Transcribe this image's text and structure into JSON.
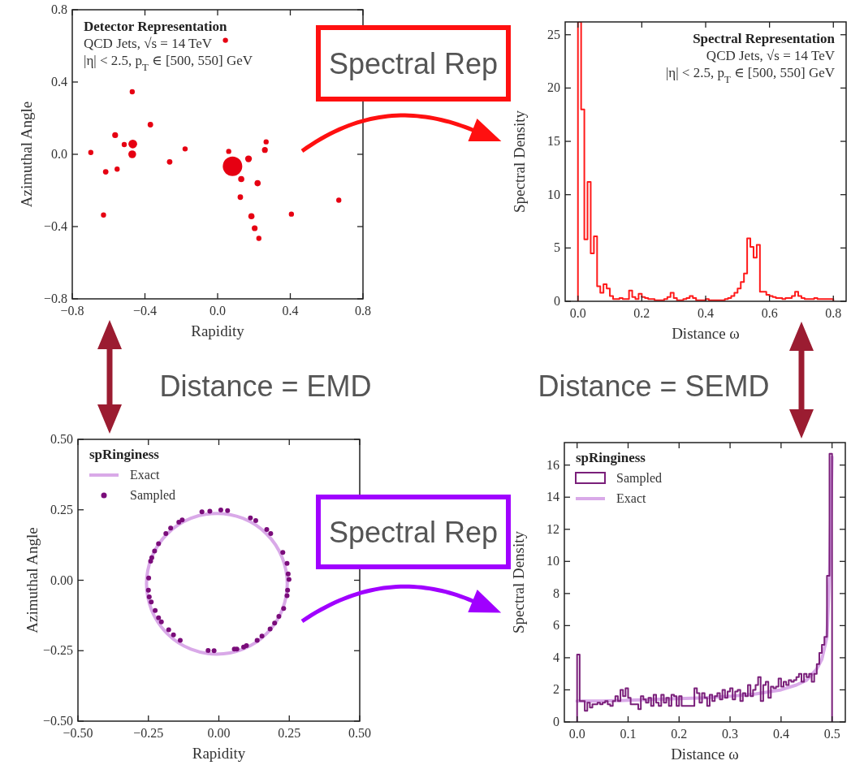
{
  "chart_data": [
    {
      "type": "bubble",
      "title": "Detector Representation",
      "annotations": [
        "QCD Jets, √s = 14 TeV",
        "|η| < 2.5, p$_{T}$ ∈ [500, 550] GeV",
        "Spectral Rep",
        "Distance = EMD"
      ],
      "xlabel": "Rapidity",
      "ylabel": "Azimuthal Angle",
      "xlim": [
        -0.8,
        0.8
      ],
      "ylim": [
        -0.8,
        0.8
      ],
      "xticks": [
        {
          "value": -0.8,
          "label": "−0.8"
        },
        {
          "value": -0.4,
          "label": "−0.4"
        },
        {
          "value": 0,
          "label": "0.0"
        },
        {
          "value": 0.4,
          "label": "0.4"
        },
        {
          "value": 0.8,
          "label": "0.8"
        }
      ],
      "yticks": [
        {
          "value": -0.8,
          "label": "−0.8"
        },
        {
          "value": -0.4,
          "label": "−0.4"
        },
        {
          "value": 0,
          "label": "0.0"
        },
        {
          "value": 0.4,
          "label": "0.4"
        },
        {
          "value": 0.8,
          "label": "0.8"
        }
      ],
      "series": [
        {
          "color": "#e60012",
          "x": [
            0.082,
            -0.467,
            -0.47,
            0.17,
            0.13,
            0.22,
            0.26,
            0.267,
            0.186,
            0.204,
            0.125,
            -0.564,
            -0.37,
            -0.616,
            -0.553,
            -0.628,
            -0.264,
            -0.179,
            -0.47,
            0.043,
            0.061,
            -0.514,
            -0.698,
            0.667,
            0.406,
            0.227
          ],
          "values": [
            -0.066,
            0.057,
            0.0,
            -0.025,
            -0.137,
            -0.16,
            0.024,
            0.069,
            -0.343,
            -0.409,
            -0.237,
            0.106,
            0.164,
            -0.097,
            -0.082,
            -0.336,
            -0.042,
            0.03,
            0.346,
            0.631,
            0.016,
            0.054,
            0.01,
            -0.254,
            -0.331,
            -0.465
          ],
          "sizes": [
            1,
            0.2,
            0.16,
            0.12,
            0.1,
            0.1,
            0.09,
            0.07,
            0.1,
            0.09,
            0.08,
            0.09,
            0.08,
            0.08,
            0.07,
            0.07,
            0.08,
            0.07,
            0.07,
            0.07,
            0.07,
            0.07,
            0.07,
            0.07,
            0.07,
            0.07
          ]
        }
      ]
    },
    {
      "type": "histogram",
      "title": "Spectral Representation",
      "annotations": [
        "QCD Jets, √s = 14 TeV",
        "|η| < 2.5, p$_{T}$ ∈ [500, 550] GeV",
        "Distance = SEMD"
      ],
      "xlabel": "Distance ω",
      "ylabel": "Spectral Density",
      "xlim": [
        -0.04,
        0.84
      ],
      "ylim": [
        0,
        26.2
      ],
      "xticks": [
        {
          "value": 0,
          "label": "0.0"
        },
        {
          "value": 0.2,
          "label": "0.2"
        },
        {
          "value": 0.4,
          "label": "0.4"
        },
        {
          "value": 0.6,
          "label": "0.6"
        },
        {
          "value": 0.8,
          "label": "0.8"
        }
      ],
      "yticks": [
        0,
        5,
        10,
        15,
        20,
        25
      ],
      "bins": [
        0,
        0.01,
        0.02,
        0.03,
        0.04,
        0.05,
        0.06,
        0.07,
        0.08,
        0.09,
        0.1,
        0.11,
        0.12,
        0.13,
        0.14,
        0.15,
        0.16,
        0.17,
        0.18,
        0.19,
        0.2,
        0.21,
        0.22,
        0.23,
        0.24,
        0.25,
        0.26,
        0.27,
        0.28,
        0.29,
        0.3,
        0.31,
        0.32,
        0.33,
        0.34,
        0.35,
        0.36,
        0.37,
        0.38,
        0.39,
        0.4,
        0.41,
        0.42,
        0.43,
        0.44,
        0.45,
        0.46,
        0.47,
        0.48,
        0.49,
        0.5,
        0.51,
        0.52,
        0.53,
        0.54,
        0.55,
        0.56,
        0.57,
        0.58,
        0.59,
        0.6,
        0.61,
        0.62,
        0.63,
        0.64,
        0.65,
        0.66,
        0.67,
        0.68,
        0.69,
        0.7,
        0.71,
        0.72,
        0.73,
        0.74,
        0.75,
        0.76,
        0.77,
        0.78,
        0.79,
        0.8
      ],
      "series": [
        {
          "color": "#ff1a1a",
          "values": [
            26.2,
            18,
            5.8,
            11.2,
            4.5,
            6.1,
            1.4,
            0.8,
            1.6,
            1.2,
            0.5,
            0.2,
            0.2,
            0.3,
            0.2,
            0.2,
            1.0,
            0.4,
            0.2,
            0.7,
            0.4,
            0.3,
            0.2,
            0.2,
            0.1,
            0.1,
            0.1,
            0.2,
            0.4,
            0.8,
            0.3,
            0.1,
            0.1,
            0.2,
            0.3,
            0.5,
            0.3,
            0.1,
            0.1,
            0.1,
            0.2,
            0.1,
            0.1,
            0.1,
            0.1,
            0.1,
            0.2,
            0.3,
            0.5,
            0.8,
            1.2,
            1.8,
            2.6,
            5.9,
            5.1,
            4.1,
            5.3,
            0.9,
            0.9,
            0.6,
            0.5,
            0.4,
            0.3,
            0.3,
            0.2,
            0.3,
            0.3,
            0.5,
            0.9,
            0.5,
            0.3,
            0.2,
            0.2,
            0.2,
            0.3,
            0.2,
            0.2,
            0.2,
            0.2,
            0.2
          ]
        }
      ]
    },
    {
      "type": "scatter",
      "legend": "top left",
      "legend_title": "spRinginess",
      "marker": "circle",
      "annotations": [
        "Spectral Rep"
      ],
      "xlabel": "Rapidity",
      "ylabel": "Azimuthal Angle",
      "xlim": [
        -0.5,
        0.5
      ],
      "ylim": [
        -0.5,
        0.5
      ],
      "xticks": [
        {
          "value": -0.5,
          "label": "−0.50"
        },
        {
          "value": -0.25,
          "label": "−0.25"
        },
        {
          "value": 0,
          "label": "0.00"
        },
        {
          "value": 0.25,
          "label": "0.25"
        },
        {
          "value": 0.5,
          "label": "0.50"
        }
      ],
      "yticks": [
        {
          "value": -0.5,
          "label": "−0.50"
        },
        {
          "value": -0.25,
          "label": "−0.25"
        },
        {
          "value": 0,
          "label": "0.00"
        },
        {
          "value": 0.25,
          "label": "0.25"
        },
        {
          "value": 0.5,
          "label": "0.50"
        }
      ],
      "series": [
        {
          "name": "Exact",
          "type": "line",
          "color": "#d9a9e8"
        },
        {
          "name": "Sampled",
          "color": "#7a0c7a",
          "x": [
            -0.06,
            -0.032,
            0.007,
            0.031,
            0.112,
            0.131,
            0.17,
            0.184,
            0.227,
            0.242,
            0.246,
            0.249,
            0.244,
            0.242,
            0.23,
            0.213,
            0.198,
            0.182,
            0.153,
            0.136,
            0.098,
            0.088,
            0.064,
            0.055,
            -0.017,
            -0.038,
            -0.137,
            -0.161,
            -0.178,
            -0.204,
            -0.214,
            -0.226,
            -0.24,
            -0.247,
            -0.25,
            -0.249,
            -0.242,
            -0.238,
            -0.228,
            -0.214,
            -0.188,
            -0.171,
            -0.142,
            -0.13
          ],
          "values": [
            0.243,
            0.245,
            0.249,
            0.247,
            0.221,
            0.212,
            0.18,
            0.166,
            0.099,
            0.06,
            0.022,
            0.003,
            -0.035,
            -0.055,
            -0.1,
            -0.128,
            -0.152,
            -0.173,
            -0.198,
            -0.213,
            -0.232,
            -0.237,
            -0.244,
            -0.244,
            -0.25,
            -0.249,
            -0.213,
            -0.194,
            -0.176,
            -0.148,
            -0.133,
            -0.107,
            -0.077,
            -0.059,
            -0.035,
            0.008,
            0.068,
            0.08,
            0.104,
            0.13,
            0.166,
            0.185,
            0.206,
            0.214
          ]
        }
      ]
    },
    {
      "type": "histogram",
      "legend": "top left",
      "legend_title": "spRinginess",
      "xlabel": "Distance ω",
      "ylabel": "Spectral Density",
      "xlim": [
        -0.025,
        0.526
      ],
      "ylim": [
        0,
        17.4
      ],
      "xticks": [
        {
          "value": 0,
          "label": "0.0"
        },
        {
          "value": 0.1,
          "label": "0.1"
        },
        {
          "value": 0.2,
          "label": "0.2"
        },
        {
          "value": 0.3,
          "label": "0.3"
        },
        {
          "value": 0.4,
          "label": "0.4"
        },
        {
          "value": 0.5,
          "label": "0.5"
        }
      ],
      "yticks": [
        0,
        2,
        4,
        6,
        8,
        10,
        12,
        14,
        16
      ],
      "bins": [
        0,
        0.005,
        0.01,
        0.015,
        0.02,
        0.025,
        0.03,
        0.035,
        0.04,
        0.045,
        0.05,
        0.055,
        0.06,
        0.065,
        0.07,
        0.075,
        0.08,
        0.085,
        0.09,
        0.095,
        0.1,
        0.105,
        0.11,
        0.115,
        0.12,
        0.125,
        0.13,
        0.135,
        0.14,
        0.145,
        0.15,
        0.155,
        0.16,
        0.165,
        0.17,
        0.175,
        0.18,
        0.185,
        0.19,
        0.195,
        0.2,
        0.205,
        0.21,
        0.215,
        0.22,
        0.225,
        0.23,
        0.235,
        0.24,
        0.245,
        0.25,
        0.255,
        0.26,
        0.265,
        0.27,
        0.275,
        0.28,
        0.285,
        0.29,
        0.295,
        0.3,
        0.305,
        0.31,
        0.315,
        0.32,
        0.325,
        0.33,
        0.335,
        0.34,
        0.345,
        0.35,
        0.355,
        0.36,
        0.365,
        0.37,
        0.375,
        0.38,
        0.385,
        0.39,
        0.395,
        0.4,
        0.405,
        0.41,
        0.415,
        0.42,
        0.425,
        0.43,
        0.435,
        0.44,
        0.445,
        0.45,
        0.455,
        0.46,
        0.465,
        0.47,
        0.475,
        0.48,
        0.485,
        0.49,
        0.495,
        0.5
      ],
      "series": [
        {
          "name": "Sampled",
          "color": "#7a1f7a",
          "values": [
            4.2,
            1.3,
            1.3,
            0.7,
            1.2,
            0.9,
            1.1,
            1.1,
            1.2,
            1.1,
            1.2,
            1.3,
            1.1,
            1.0,
            1.3,
            1.6,
            1.3,
            2.0,
            1.6,
            2.1,
            1.5,
            1.1,
            1.1,
            1.1,
            0.8,
            1.6,
            1.4,
            1.2,
            1.5,
            1.0,
            1.7,
            1.2,
            1.0,
            1.7,
            1.2,
            1.5,
            1.0,
            1.7,
            1.6,
            1.0,
            1.6,
            1.0,
            1.0,
            1.0,
            1.0,
            1.0,
            2.1,
            1.8,
            1.2,
            1.8,
            1.5,
            1.0,
            1.7,
            1.3,
            1.6,
            1.8,
            1.4,
            2.0,
            1.5,
            1.9,
            2.1,
            1.4,
            1.9,
            2.0,
            1.3,
            1.8,
            1.6,
            2.3,
            1.6,
            2.0,
            2.3,
            2.8,
            1.3,
            2.3,
            2.5,
            1.5,
            2.2,
            2.1,
            2.2,
            2.7,
            2.2,
            2.5,
            2.3,
            2.6,
            2.5,
            2.6,
            2.8,
            3.0,
            2.5,
            3.0,
            2.8,
            3.0,
            2.5,
            3.0,
            3.6,
            4.3,
            4.8,
            5.3,
            9.1,
            16.7
          ]
        },
        {
          "name": "Exact",
          "type": "line",
          "color": "#d9a9e8",
          "x": [
            0,
            0.05,
            0.1,
            0.15,
            0.2,
            0.25,
            0.3,
            0.35,
            0.4,
            0.43,
            0.45,
            0.47,
            0.48,
            0.49,
            0.495,
            0.5
          ],
          "values": [
            1.3,
            1.3,
            1.35,
            1.4,
            1.45,
            1.5,
            1.6,
            1.75,
            2.0,
            2.3,
            2.6,
            3.3,
            3.9,
            5.3,
            9.1,
            16.5
          ]
        }
      ]
    }
  ]
}
